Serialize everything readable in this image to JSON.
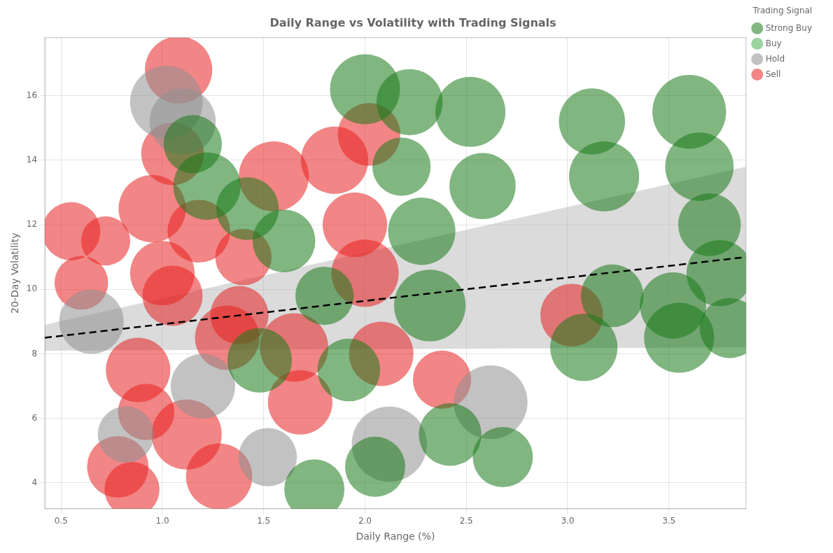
{
  "chart_data": {
    "type": "bubble",
    "title": "Daily Range vs Volatility with Trading Signals",
    "xlabel": "Daily Range (%)",
    "ylabel": "20-Day Volatility",
    "xlim": [
      0.42,
      3.88
    ],
    "ylim": [
      3.2,
      17.8
    ],
    "xticks": [
      0.5,
      {
        "value": 1,
        "label": "1.0"
      },
      1.5,
      {
        "value": 2,
        "label": "2.0"
      },
      2.5,
      {
        "value": 3,
        "label": "3.0"
      },
      3.5
    ],
    "yticks": [
      4,
      6,
      8,
      10,
      12,
      14,
      16
    ],
    "grid": true,
    "legend": "upper right",
    "legend_title": "Trading Signal",
    "series": [
      {
        "name": "Strong Buy",
        "color": "#1a7a1a",
        "x": [
          1.15,
          1.22,
          1.42,
          1.48,
          1.6,
          1.75,
          1.8,
          1.92,
          2.0,
          2.05,
          2.18,
          2.22,
          2.28,
          2.32,
          2.42,
          2.52,
          2.58,
          2.68,
          3.08,
          3.12,
          3.18,
          3.22,
          3.52,
          3.55,
          3.6,
          3.65,
          3.7,
          3.75,
          3.8
        ],
        "y": [
          14.5,
          13.2,
          12.5,
          7.8,
          11.5,
          3.8,
          9.8,
          7.5,
          16.2,
          4.5,
          13.8,
          15.8,
          11.8,
          9.5,
          5.5,
          15.5,
          13.2,
          4.8,
          8.2,
          15.2,
          13.5,
          9.8,
          9.5,
          8.5,
          15.5,
          13.8,
          12.0,
          10.5,
          8.8
        ],
        "size": [
          4500,
          6000,
          5200,
          5500,
          5200,
          4800,
          4500,
          5200,
          6500,
          4800,
          4500,
          5800,
          6000,
          6800,
          5200,
          6500,
          5800,
          4800,
          6000,
          5800,
          6500,
          5200,
          5800,
          6500,
          7200,
          6200,
          5200,
          5800,
          4800
        ]
      },
      {
        "name": "Buy",
        "color": "#4caf50",
        "x": [],
        "y": [],
        "size": []
      },
      {
        "name": "Hold",
        "color": "#909090",
        "x": [
          0.65,
          0.82,
          1.02,
          1.1,
          1.2,
          1.52,
          2.12,
          2.62
        ],
        "y": [
          9.0,
          5.5,
          15.8,
          15.2,
          7.0,
          4.8,
          5.2,
          6.5
        ],
        "size": [
          5500,
          4200,
          7000,
          5800,
          5500,
          4500,
          7500,
          7200
        ]
      },
      {
        "name": "Sell",
        "color": "#e82020",
        "x": [
          0.55,
          0.6,
          0.72,
          0.78,
          0.88,
          0.85,
          0.92,
          0.95,
          1.0,
          1.05,
          1.05,
          1.08,
          1.12,
          1.18,
          1.28,
          1.32,
          1.38,
          1.4,
          1.55,
          1.65,
          1.68,
          1.85,
          1.95,
          2.02,
          2.0,
          2.08,
          2.38,
          3.02
        ],
        "y": [
          11.8,
          10.2,
          11.5,
          4.5,
          7.5,
          3.8,
          6.2,
          12.5,
          10.5,
          14.2,
          9.8,
          16.8,
          5.5,
          11.8,
          4.2,
          8.5,
          9.2,
          11.0,
          13.5,
          8.2,
          6.5,
          14.0,
          12.0,
          14.8,
          10.5,
          8.0,
          7.2,
          9.2
        ],
        "size": [
          4500,
          3800,
          3200,
          5000,
          5500,
          4000,
          4200,
          6000,
          5500,
          5200,
          4800,
          6000,
          6500,
          5200,
          5800,
          5500,
          4500,
          4200,
          6500,
          6200,
          5500,
          6000,
          5500,
          5200,
          6000,
          5500,
          4500,
          5200
        ]
      }
    ],
    "trend_line": {
      "x": [
        0.42,
        3.88
      ],
      "y": [
        8.5,
        11.0
      ],
      "color": "#000000",
      "line_style": "dashed"
    },
    "ci_band": {
      "x": [
        0.42,
        3.88
      ],
      "lower": [
        8.1,
        8.2
      ],
      "upper": [
        8.9,
        13.8
      ],
      "color": "#b0b0b0"
    }
  }
}
